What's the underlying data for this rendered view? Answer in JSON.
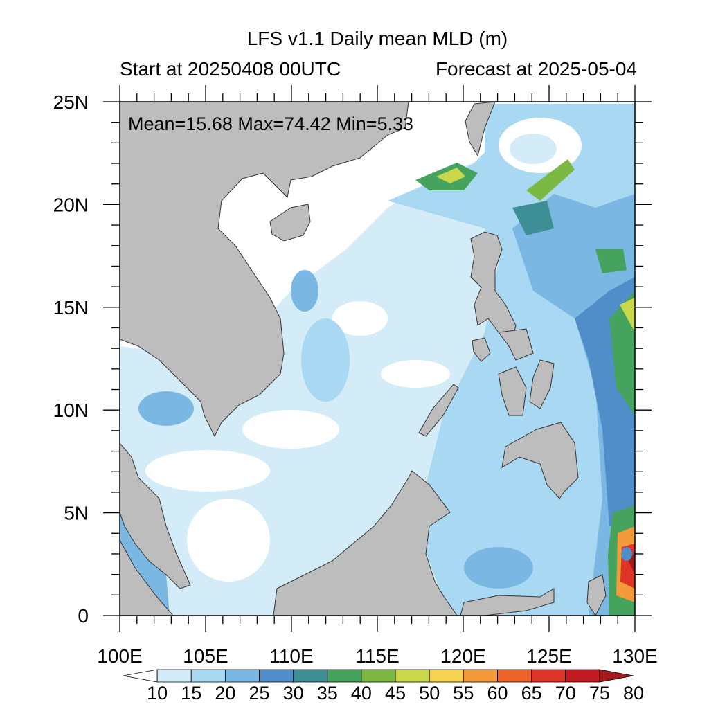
{
  "header": {
    "title": "LFS v1.1 Daily mean MLD (m)",
    "start": "Start at 20250408 00UTC",
    "forecast": "Forecast at 2025-05-04"
  },
  "stats": {
    "text": "Mean=15.68  Max=74.42  Min=5.33",
    "mean": 15.68,
    "max": 74.42,
    "min": 5.33
  },
  "axes": {
    "lon_labels": [
      "100E",
      "105E",
      "110E",
      "115E",
      "120E",
      "125E",
      "130E"
    ],
    "lon_values": [
      100,
      105,
      110,
      115,
      120,
      125,
      130
    ],
    "lat_labels": [
      "0",
      "5N",
      "10N",
      "15N",
      "20N",
      "25N"
    ],
    "lat_values": [
      0,
      5,
      10,
      15,
      20,
      25
    ],
    "lon_range": [
      100,
      130
    ],
    "lat_range": [
      0,
      25
    ]
  },
  "colorbar": {
    "labels": [
      "10",
      "15",
      "20",
      "25",
      "30",
      "35",
      "40",
      "45",
      "50",
      "55",
      "60",
      "65",
      "70",
      "75",
      "80"
    ],
    "colors": [
      "#ffffff",
      "#d3ecf8",
      "#a8d8f2",
      "#7ab7e3",
      "#4f8ec9",
      "#3e8f95",
      "#45a35d",
      "#7cb944",
      "#c8d84a",
      "#f8d251",
      "#f39a3a",
      "#ec6428",
      "#dd3427",
      "#c41b22",
      "#a51b1d"
    ],
    "land_color": "#bdbdbd"
  }
}
